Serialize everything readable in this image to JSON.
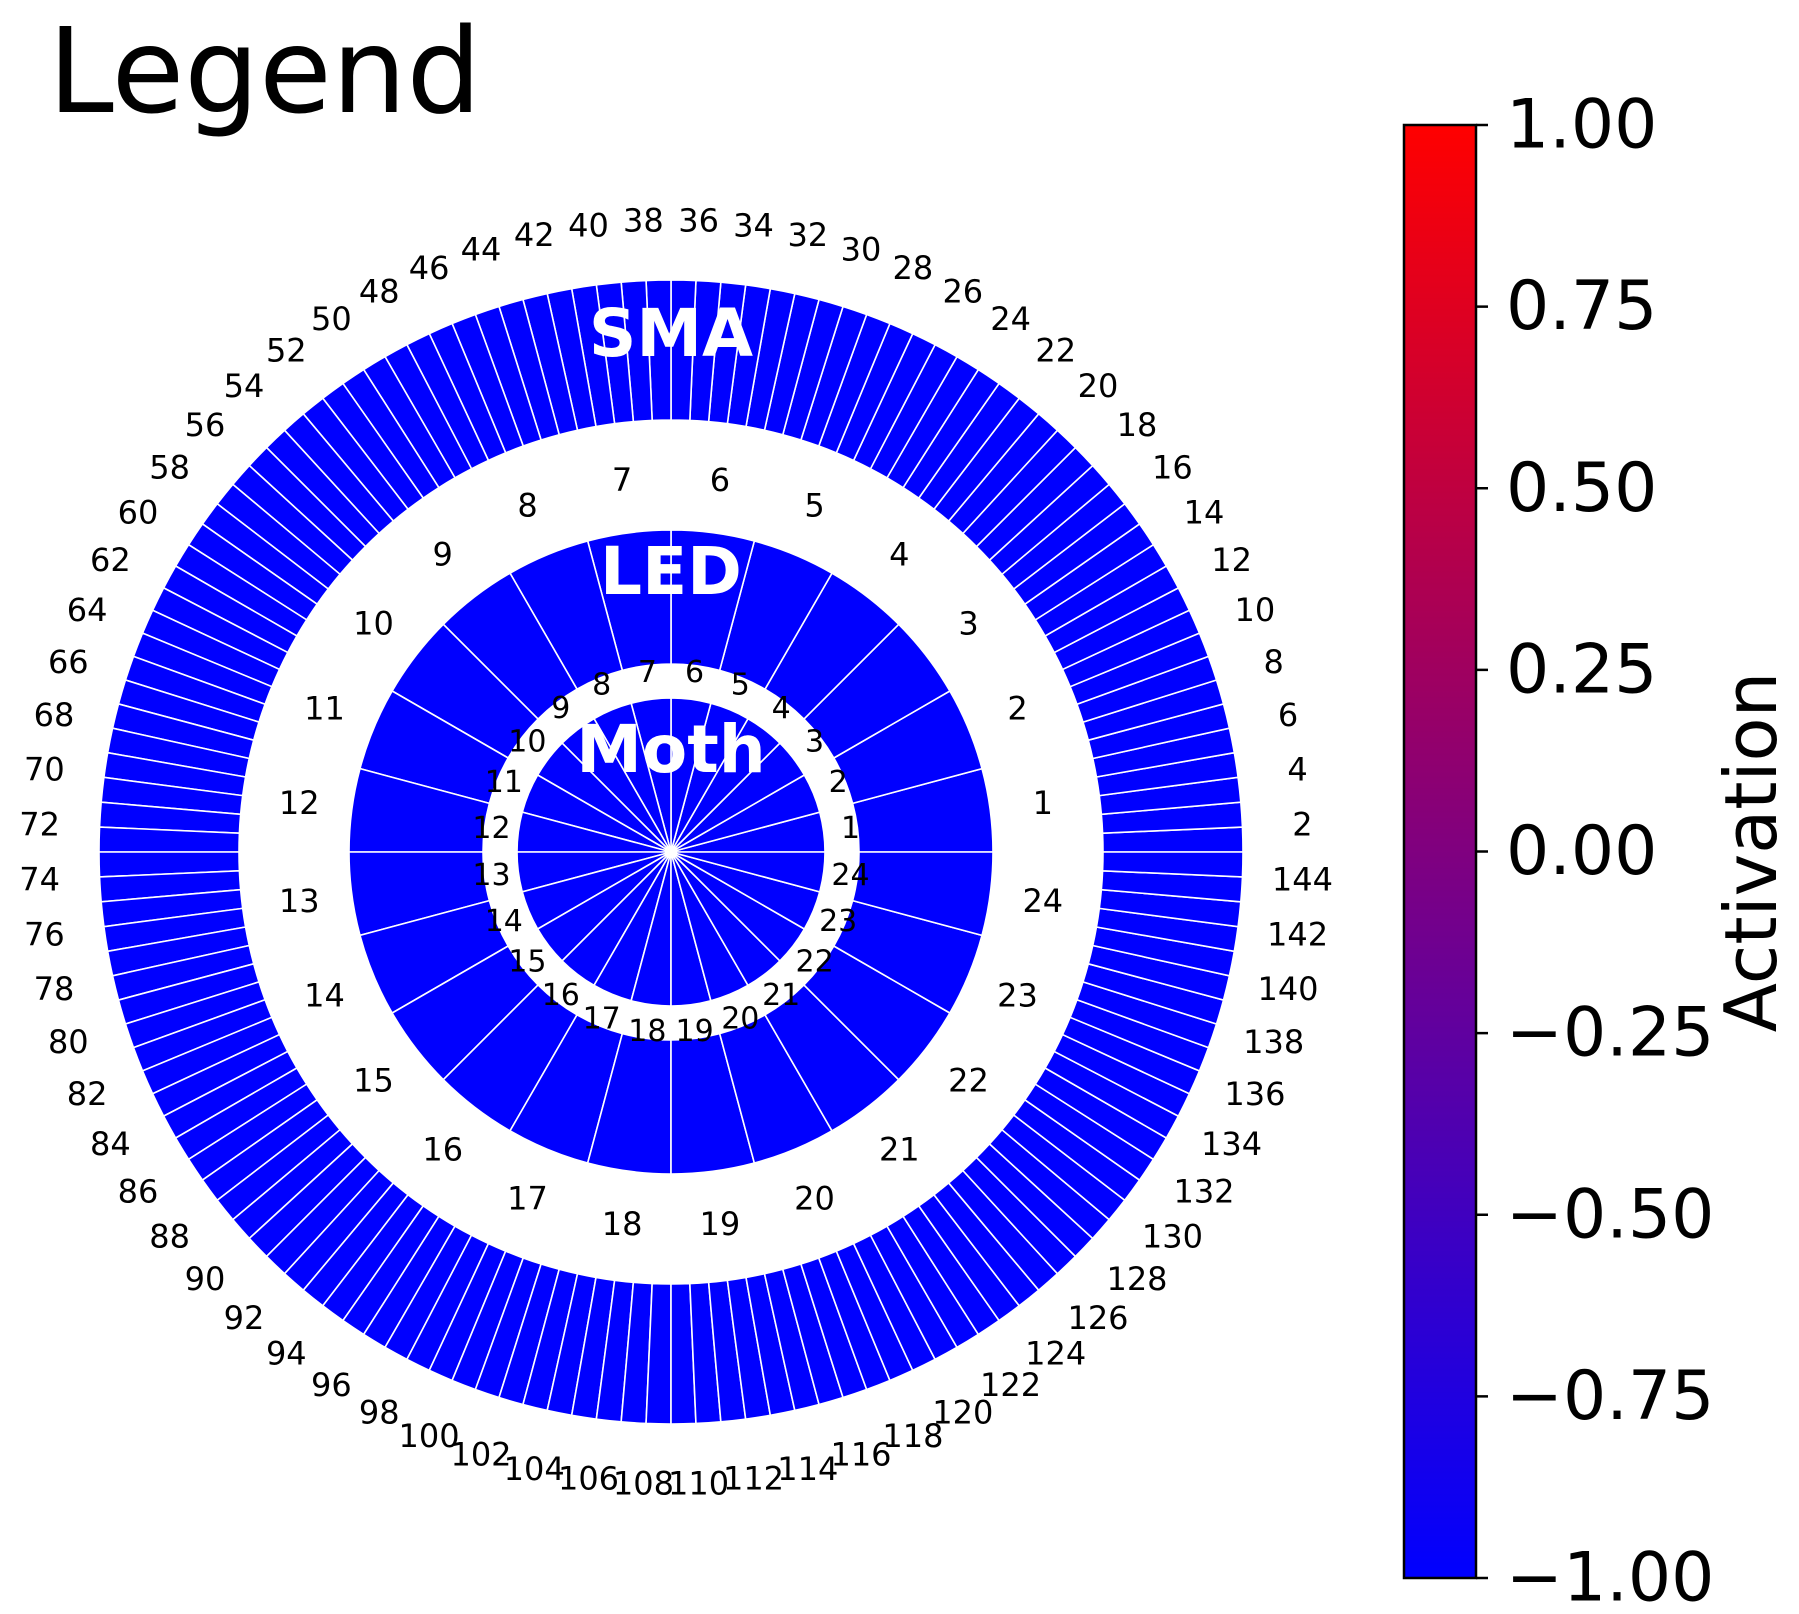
{
  "chart_data": {
    "type": "polar-bar",
    "title": "Legend",
    "rings": [
      {
        "name": "Moth",
        "segments": 24,
        "labels": [
          "1",
          "2",
          "3",
          "4",
          "5",
          "6",
          "7",
          "8",
          "9",
          "10",
          "11",
          "12",
          "13",
          "14",
          "15",
          "16",
          "17",
          "18",
          "19",
          "20",
          "21",
          "22",
          "23",
          "24"
        ],
        "values": [
          -1,
          -1,
          -1,
          -1,
          -1,
          -1,
          -1,
          -1,
          -1,
          -1,
          -1,
          -1,
          -1,
          -1,
          -1,
          -1,
          -1,
          -1,
          -1,
          -1,
          -1,
          -1,
          -1,
          -1
        ]
      },
      {
        "name": "LED",
        "segments": 24,
        "labels": [
          "1",
          "2",
          "3",
          "4",
          "5",
          "6",
          "7",
          "8",
          "9",
          "10",
          "11",
          "12",
          "13",
          "14",
          "15",
          "16",
          "17",
          "18",
          "19",
          "20",
          "21",
          "22",
          "23",
          "24"
        ],
        "values": [
          -1,
          -1,
          -1,
          -1,
          -1,
          -1,
          -1,
          -1,
          -1,
          -1,
          -1,
          -1,
          -1,
          -1,
          -1,
          -1,
          -1,
          -1,
          -1,
          -1,
          -1,
          -1,
          -1,
          -1
        ]
      },
      {
        "name": "SMA",
        "segments": 144,
        "labels": [
          "2",
          "4",
          "6",
          "8",
          "10",
          "12",
          "14",
          "16",
          "18",
          "20",
          "22",
          "24",
          "26",
          "28",
          "30",
          "32",
          "34",
          "36",
          "38",
          "40",
          "42",
          "44",
          "46",
          "48",
          "50",
          "52",
          "54",
          "56",
          "58",
          "60",
          "62",
          "64",
          "66",
          "68",
          "70",
          "72",
          "74",
          "76",
          "78",
          "80",
          "82",
          "84",
          "86",
          "88",
          "90",
          "92",
          "94",
          "96",
          "98",
          "100",
          "102",
          "104",
          "106",
          "108",
          "110",
          "112",
          "114",
          "116",
          "118",
          "120",
          "122",
          "124",
          "126",
          "128",
          "130",
          "132",
          "134",
          "136",
          "138",
          "140",
          "142",
          "144"
        ],
        "value_all": -1
      }
    ],
    "colorbar": {
      "label": "Activation",
      "range": [
        -1.0,
        1.0
      ],
      "ticks": [
        "−1.00",
        "−0.75",
        "−0.50",
        "−0.25",
        "0.00",
        "0.25",
        "0.50",
        "0.75",
        "1.00"
      ],
      "colormap_low": "#0000ff",
      "colormap_high": "#ff0000"
    },
    "colors": {
      "segment_edge": "#ffffff",
      "text": "#000000",
      "ring_label": "#ffffff"
    }
  }
}
